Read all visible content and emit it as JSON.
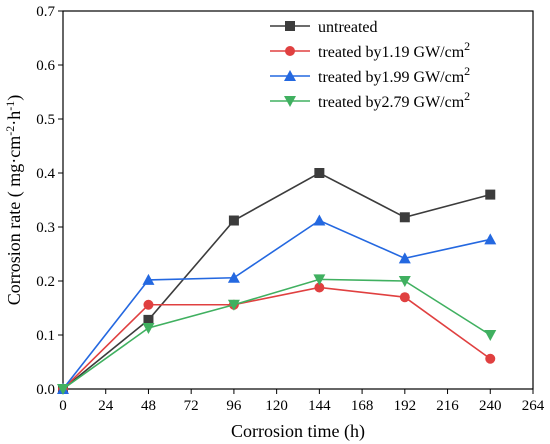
{
  "chart_data": {
    "type": "line",
    "x": [
      0,
      48,
      96,
      144,
      192,
      240
    ],
    "xlabel": "Corrosion time (h)",
    "ylabel_main": "Corrosion rate ( mg·cm",
    "ylabel_sup1": "-2",
    "ylabel_mid": "·h",
    "ylabel_sup2": "-1",
    "ylabel_end": ")",
    "xlim": [
      0,
      264
    ],
    "ylim": [
      0,
      0.7
    ],
    "xticks": [
      "0",
      "24",
      "48",
      "72",
      "96",
      "120",
      "144",
      "168",
      "192",
      "216",
      "240",
      "264"
    ],
    "yticks": [
      "0.0",
      "0.1",
      "0.2",
      "0.3",
      "0.4",
      "0.5",
      "0.6",
      "0.7"
    ],
    "legend_position": "top-right",
    "series": [
      {
        "name": "untreated",
        "sup": "",
        "color": "#3c3c3c",
        "marker": "square",
        "values": [
          0,
          0.128,
          0.312,
          0.4,
          0.318,
          0.36
        ]
      },
      {
        "name": "treated by1.19 GW/cm",
        "sup": "2",
        "color": "#e04040",
        "marker": "circle",
        "values": [
          0,
          0.156,
          0.156,
          0.188,
          0.17,
          0.056
        ]
      },
      {
        "name": "treated by1.99 GW/cm",
        "sup": "2",
        "color": "#2468e0",
        "marker": "triangle-up",
        "values": [
          0,
          0.202,
          0.206,
          0.312,
          0.242,
          0.277
        ]
      },
      {
        "name": "treated by2.79 GW/cm",
        "sup": "2",
        "color": "#40b060",
        "marker": "triangle-down",
        "values": [
          0,
          0.113,
          0.156,
          0.203,
          0.2,
          0.1
        ]
      }
    ]
  }
}
